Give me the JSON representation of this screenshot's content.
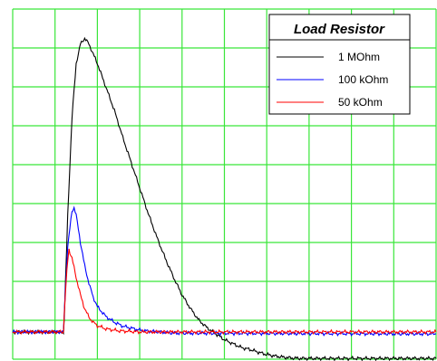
{
  "chart_data": {
    "type": "line",
    "title": "",
    "xlabel": "",
    "ylabel": "",
    "grid": true,
    "grid_color": "#39e639",
    "x_divisions": 10,
    "y_divisions": 9,
    "xlim": [
      0,
      10
    ],
    "ylim": [
      -0.7,
      8.3
    ],
    "legend": {
      "title": "Load Resistor",
      "placement": "top-right"
    },
    "series": [
      {
        "name": "1 MOhm",
        "color": "#000000",
        "x": [
          0,
          1.0,
          1.2,
          1.22,
          1.3,
          1.4,
          1.5,
          1.6,
          1.7,
          1.8,
          1.9,
          2.0,
          2.2,
          2.4,
          2.6,
          2.8,
          3.0,
          3.2,
          3.4,
          3.6,
          3.8,
          4.0,
          4.2,
          4.4,
          4.6,
          4.8,
          5.0,
          5.2,
          5.4,
          5.6,
          5.8,
          6.0,
          6.2,
          6.4,
          6.6,
          6.8,
          7.0,
          10.0
        ],
        "values": [
          0,
          0,
          0,
          0.4,
          3.0,
          5.5,
          6.9,
          7.4,
          7.55,
          7.4,
          7.15,
          6.9,
          6.3,
          5.7,
          5.0,
          4.35,
          3.7,
          3.05,
          2.45,
          1.9,
          1.4,
          0.95,
          0.6,
          0.3,
          0.1,
          -0.05,
          -0.2,
          -0.3,
          -0.4,
          -0.45,
          -0.52,
          -0.58,
          -0.62,
          -0.65,
          -0.67,
          -0.68,
          -0.68,
          -0.68
        ]
      },
      {
        "name": "100 kOhm",
        "color": "#0000ff",
        "x": [
          0,
          1.0,
          1.2,
          1.22,
          1.3,
          1.4,
          1.45,
          1.5,
          1.6,
          1.7,
          1.8,
          1.9,
          2.0,
          2.2,
          2.4,
          2.6,
          2.8,
          3.0,
          3.2,
          3.5,
          3.8,
          10.0
        ],
        "values": [
          0,
          0,
          0,
          0.6,
          2.2,
          3.1,
          3.2,
          3.0,
          2.3,
          1.7,
          1.25,
          0.9,
          0.65,
          0.4,
          0.25,
          0.15,
          0.1,
          0.05,
          0.02,
          0,
          -0.03,
          -0.05
        ]
      },
      {
        "name": "50 kOhm",
        "color": "#ff0000",
        "x": [
          0,
          1.0,
          1.2,
          1.22,
          1.28,
          1.33,
          1.4,
          1.5,
          1.6,
          1.7,
          1.8,
          1.9,
          2.0,
          2.2,
          2.5,
          3.0,
          10.0
        ],
        "values": [
          0,
          0,
          0,
          0.5,
          1.6,
          2.1,
          1.9,
          1.4,
          0.95,
          0.6,
          0.38,
          0.25,
          0.16,
          0.08,
          0.03,
          0,
          0
        ]
      }
    ]
  }
}
